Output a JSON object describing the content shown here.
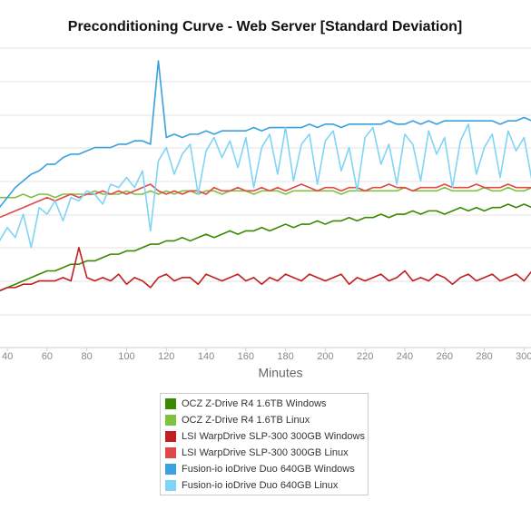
{
  "chart_data": {
    "type": "line",
    "title": "Preconditioning Curve - Web Server [Standard Deviation]",
    "x_label": "Minutes",
    "xlim": [
      36.3,
      303.5
    ],
    "ylim": [
      0,
      9.2
    ],
    "xticks": [
      40,
      60,
      80,
      100,
      120,
      140,
      160,
      180,
      200,
      220,
      240,
      260,
      280,
      300
    ],
    "x": [
      36,
      40,
      44,
      48,
      52,
      56,
      60,
      64,
      68,
      72,
      76,
      80,
      84,
      88,
      92,
      96,
      100,
      104,
      108,
      112,
      116,
      120,
      124,
      128,
      132,
      136,
      140,
      144,
      148,
      152,
      156,
      160,
      164,
      168,
      172,
      176,
      180,
      184,
      188,
      192,
      196,
      200,
      204,
      208,
      212,
      216,
      220,
      224,
      228,
      232,
      236,
      240,
      244,
      248,
      252,
      256,
      260,
      264,
      268,
      272,
      276,
      280,
      284,
      288,
      292,
      296,
      300,
      304
    ],
    "series": [
      {
        "name": "OCZ Z-Drive R4 1.6TB Windows",
        "color": "#3a8a00",
        "values": [
          1.7,
          1.8,
          1.9,
          2.0,
          2.1,
          2.2,
          2.3,
          2.3,
          2.4,
          2.5,
          2.5,
          2.6,
          2.6,
          2.7,
          2.8,
          2.8,
          2.9,
          2.9,
          3.0,
          3.1,
          3.1,
          3.2,
          3.2,
          3.3,
          3.2,
          3.3,
          3.4,
          3.3,
          3.4,
          3.5,
          3.4,
          3.5,
          3.5,
          3.6,
          3.5,
          3.6,
          3.7,
          3.6,
          3.7,
          3.7,
          3.8,
          3.7,
          3.8,
          3.8,
          3.9,
          3.8,
          3.9,
          3.9,
          4.0,
          3.9,
          4.0,
          4.0,
          4.1,
          4.0,
          4.1,
          4.1,
          4.0,
          4.1,
          4.2,
          4.1,
          4.2,
          4.1,
          4.2,
          4.2,
          4.3,
          4.2,
          4.3,
          4.2
        ]
      },
      {
        "name": "OCZ Z-Drive R4 1.6TB Linux",
        "color": "#7fc241",
        "values": [
          4.5,
          4.5,
          4.5,
          4.6,
          4.5,
          4.6,
          4.6,
          4.5,
          4.6,
          4.6,
          4.6,
          4.6,
          4.7,
          4.6,
          4.6,
          4.6,
          4.7,
          4.6,
          4.6,
          4.7,
          4.6,
          4.7,
          4.6,
          4.7,
          4.7,
          4.6,
          4.7,
          4.7,
          4.6,
          4.7,
          4.7,
          4.7,
          4.6,
          4.7,
          4.7,
          4.7,
          4.6,
          4.7,
          4.7,
          4.7,
          4.7,
          4.7,
          4.7,
          4.6,
          4.7,
          4.7,
          4.7,
          4.7,
          4.7,
          4.7,
          4.7,
          4.8,
          4.7,
          4.7,
          4.7,
          4.7,
          4.8,
          4.7,
          4.7,
          4.7,
          4.7,
          4.8,
          4.7,
          4.7,
          4.8,
          4.7,
          4.7,
          4.8
        ]
      },
      {
        "name": "LSI WarpDrive SLP-300 300GB Windows",
        "color": "#c0201f",
        "values": [
          1.7,
          1.8,
          1.8,
          1.9,
          1.9,
          2.0,
          2.0,
          2.0,
          2.1,
          2.0,
          3.0,
          2.1,
          2.0,
          2.1,
          2.0,
          2.2,
          1.9,
          2.1,
          2.0,
          1.8,
          2.1,
          2.2,
          2.0,
          2.1,
          2.1,
          1.9,
          2.2,
          2.1,
          2.0,
          2.1,
          2.2,
          2.0,
          2.1,
          1.9,
          2.1,
          2.0,
          2.2,
          2.1,
          2.0,
          2.2,
          2.1,
          2.0,
          2.1,
          2.2,
          1.9,
          2.1,
          2.0,
          2.1,
          2.2,
          2.0,
          2.1,
          2.3,
          2.0,
          2.1,
          2.0,
          2.2,
          2.1,
          1.9,
          2.1,
          2.2,
          2.0,
          2.1,
          2.2,
          2.0,
          2.1,
          2.2,
          2.0,
          2.3
        ]
      },
      {
        "name": "LSI WarpDrive SLP-300 300GB Linux",
        "color": "#e04848",
        "values": [
          3.9,
          4.0,
          4.1,
          4.2,
          4.3,
          4.4,
          4.5,
          4.4,
          4.5,
          4.6,
          4.5,
          4.6,
          4.6,
          4.7,
          4.6,
          4.7,
          4.6,
          4.7,
          4.8,
          4.9,
          4.7,
          4.6,
          4.7,
          4.6,
          4.7,
          4.7,
          4.6,
          4.8,
          4.7,
          4.7,
          4.8,
          4.7,
          4.7,
          4.8,
          4.7,
          4.8,
          4.7,
          4.8,
          4.9,
          4.8,
          4.7,
          4.8,
          4.8,
          4.7,
          4.8,
          4.8,
          4.7,
          4.8,
          4.8,
          4.9,
          4.8,
          4.8,
          4.7,
          4.8,
          4.8,
          4.8,
          4.9,
          4.8,
          4.8,
          4.8,
          4.9,
          4.8,
          4.8,
          4.8,
          4.9,
          4.8,
          4.8,
          4.8
        ]
      },
      {
        "name": "Fusion-io ioDrive Duo 640GB Windows",
        "color": "#3aa0e0",
        "values": [
          4.2,
          4.5,
          4.8,
          5.0,
          5.2,
          5.3,
          5.5,
          5.5,
          5.7,
          5.8,
          5.8,
          5.9,
          6.0,
          6.0,
          6.0,
          6.1,
          6.1,
          6.2,
          6.2,
          6.1,
          8.6,
          6.3,
          6.4,
          6.3,
          6.4,
          6.4,
          6.5,
          6.4,
          6.5,
          6.5,
          6.5,
          6.5,
          6.6,
          6.5,
          6.6,
          6.6,
          6.6,
          6.6,
          6.6,
          6.7,
          6.6,
          6.7,
          6.7,
          6.6,
          6.7,
          6.7,
          6.7,
          6.7,
          6.7,
          6.8,
          6.7,
          6.7,
          6.8,
          6.7,
          6.8,
          6.7,
          6.8,
          6.8,
          6.8,
          6.8,
          6.8,
          6.8,
          6.8,
          6.7,
          6.8,
          6.8,
          6.9,
          6.8
        ]
      },
      {
        "name": "Fusion-io ioDrive Duo 640GB Linux",
        "color": "#80d4f6",
        "values": [
          3.2,
          3.6,
          3.3,
          4.0,
          3.0,
          4.2,
          4.0,
          4.4,
          3.8,
          4.5,
          4.4,
          4.7,
          4.6,
          4.3,
          4.9,
          4.8,
          5.1,
          4.8,
          5.3,
          3.5,
          5.6,
          6.0,
          5.2,
          5.8,
          6.1,
          4.6,
          5.9,
          6.3,
          5.7,
          6.2,
          5.4,
          6.3,
          4.8,
          6.0,
          6.4,
          5.2,
          6.6,
          5.0,
          6.1,
          6.4,
          4.9,
          6.2,
          6.5,
          5.3,
          6.0,
          4.7,
          6.3,
          6.6,
          5.5,
          6.1,
          4.9,
          6.4,
          6.1,
          5.0,
          6.5,
          5.8,
          6.3,
          4.8,
          6.2,
          6.7,
          5.2,
          6.0,
          6.4,
          5.1,
          6.5,
          5.9,
          6.3,
          5.0
        ]
      }
    ]
  }
}
